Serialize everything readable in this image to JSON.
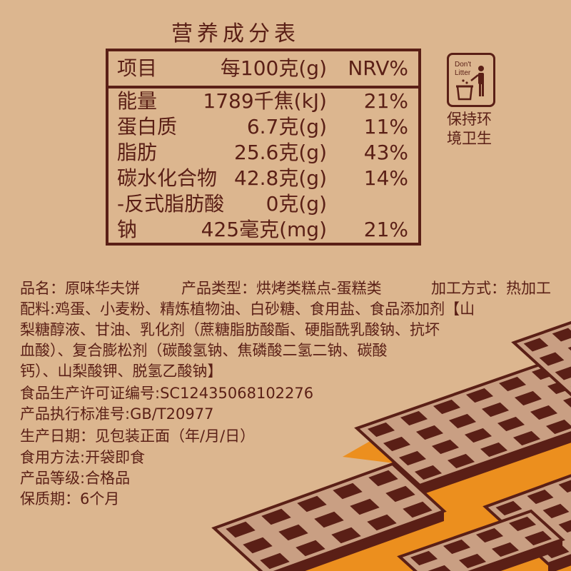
{
  "title": "营养成分表",
  "table": {
    "headers": [
      "项目",
      "每100克(g)",
      "NRV%"
    ],
    "rows": [
      {
        "name": "能量",
        "amount": "1789千焦(kJ)",
        "nrv": "21%"
      },
      {
        "name": "蛋白质",
        "amount": "6.7克(g)",
        "nrv": "11%"
      },
      {
        "name": "脂肪",
        "amount": "25.6克(g)",
        "nrv": "43%"
      },
      {
        "name": "碳水化合物",
        "amount": "42.8克(g)",
        "nrv": "14%"
      },
      {
        "name": "-反式脂肪酸",
        "amount": "0克(g)",
        "nrv": ""
      },
      {
        "name": "钠",
        "amount": "425毫克(mg)",
        "nrv": "21%"
      }
    ]
  },
  "dont_litter": {
    "icon_text_1": "Don't",
    "icon_text_2": "Litter",
    "caption_1": "保持环",
    "caption_2": "境卫生"
  },
  "info": {
    "line1_a": "品名：原味华夫饼",
    "line1_b": "产品类型：烘烤类糕点-蛋糕类",
    "line1_c": "加工方式：热加工",
    "ingredients_1": "配料:鸡蛋、小麦粉、精炼植物油、白砂糖、食用盐、食品添加剂【山",
    "ingredients_2": "梨糖醇液、甘油、乳化剂（蔗糖脂肪酸酯、硬脂酰乳酸钠、抗坏",
    "ingredients_3": "血酸）、复合膨松剂（碳酸氢钠、焦磷酸二氢二钠、碳酸",
    "ingredients_4": "钙）、山梨酸钾、脱氢乙酸钠】",
    "license": "食品生产许可证编号:SC12435068102276",
    "standard": "产品执行标准号:GB/T20977",
    "production_date": "生产日期：见包装正面（年/月/日）",
    "usage": "食用方法:开袋即食",
    "grade": "产品等级:合格品",
    "shelf_life": "保质期：6个月"
  },
  "colors": {
    "background": "#dcb68f",
    "text": "#5a1f16",
    "waffle_dark": "#5a1f16",
    "waffle_light": "#c99f83",
    "stripe": "#ec8f1e"
  }
}
